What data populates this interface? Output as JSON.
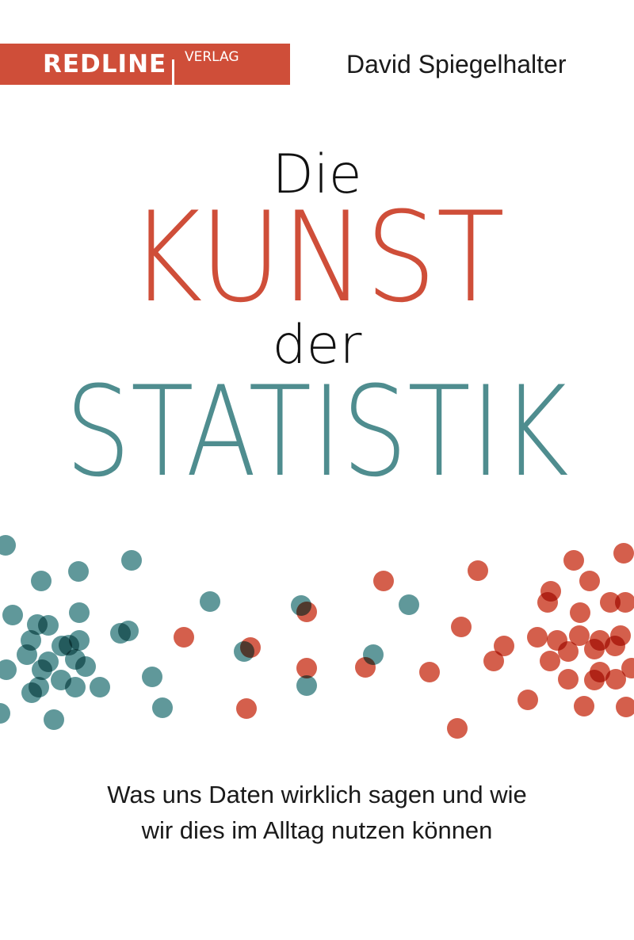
{
  "publisher": {
    "name": "REDLINE",
    "imprint": "VERLAG",
    "color": "#cf4e39"
  },
  "author": "David Spiegelhalter",
  "title": {
    "line1": "Die",
    "line2": "KUNST",
    "line3": "der",
    "line4": "STATISTIK"
  },
  "subtitle": {
    "line1": "Was uns Daten wirklich sagen und wie",
    "line2": "wir dies im Alltag nutzen können"
  },
  "colors": {
    "red": "#cf4e39",
    "teal": "#4f8d8f",
    "text": "#111111"
  },
  "illustration": "scattered-dots-teal-left-red-right"
}
